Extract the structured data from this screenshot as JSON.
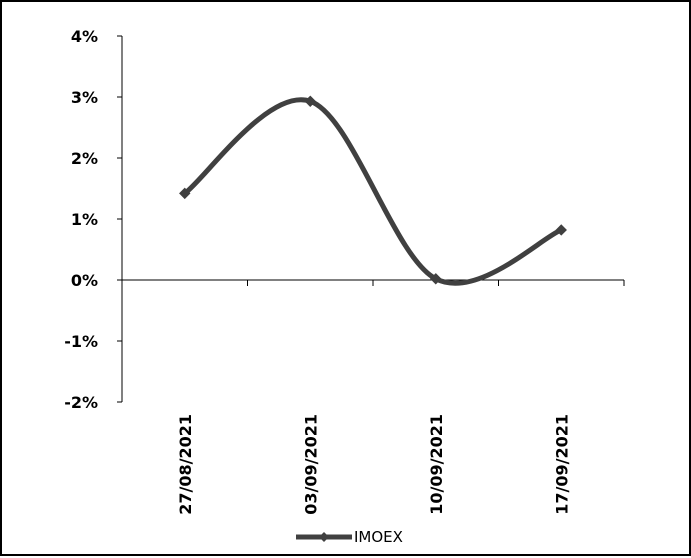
{
  "chart_data": {
    "type": "line",
    "title": "",
    "xlabel": "",
    "ylabel": "",
    "categories": [
      "27/08/2021",
      "03/09/2021",
      "10/09/2021",
      "17/09/2021"
    ],
    "series": [
      {
        "name": "IMOEX",
        "values": [
          1.42,
          2.93,
          0.02,
          0.82
        ],
        "color": "#404040",
        "marker": "diamond"
      }
    ],
    "ylim": [
      -2,
      4
    ],
    "yticks": [
      4,
      3,
      2,
      1,
      0,
      -1,
      -2
    ],
    "ytick_labels": [
      "4%",
      "3%",
      "2%",
      "1%",
      "0%",
      "-1%",
      "-2%"
    ],
    "smooth": true,
    "grid": false,
    "legend": {
      "position": "bottom",
      "entries": [
        "IMOEX"
      ]
    }
  }
}
